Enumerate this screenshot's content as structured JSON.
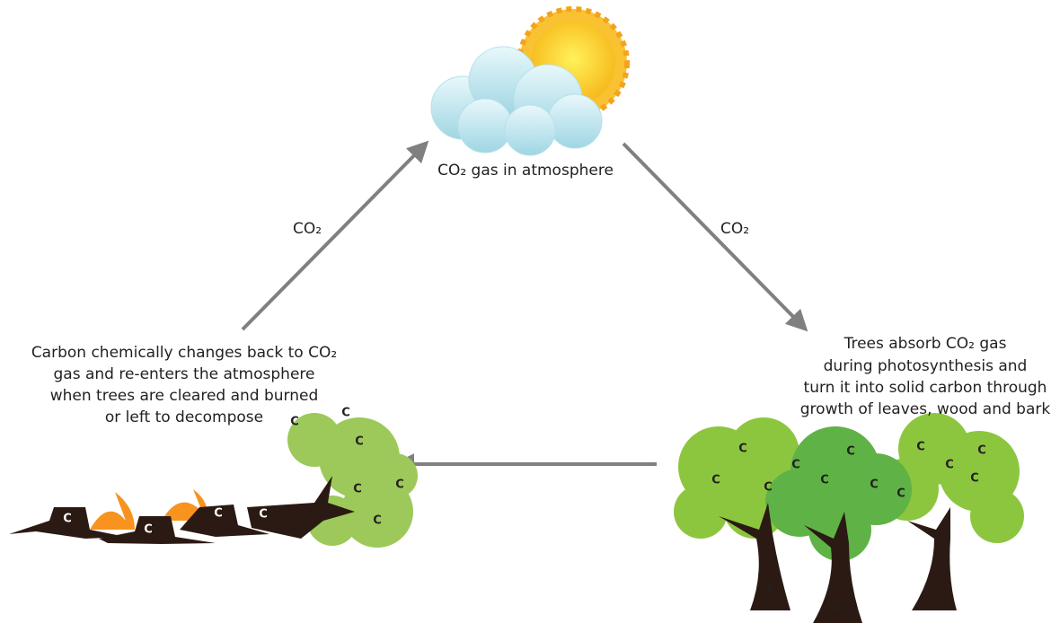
{
  "nodes": [
    {
      "label": [
        "CO₂ gas in atmosphere"
      ]
    },
    {
      "label": [
        "Trees absorb CO₂ gas",
        "during photosynthesis and",
        "turn it into solid carbon through",
        "growth of leaves, wood and bark"
      ]
    },
    {
      "label": [
        "Carbon chemically changes back to CO₂",
        "gas and re-enters the atmosphere",
        "when trees are cleared and burned",
        "or left to decompose"
      ]
    }
  ],
  "edges": [
    {
      "label": "CO₂"
    },
    {
      "label": "CO₂"
    }
  ],
  "carbon_symbol": "C"
}
